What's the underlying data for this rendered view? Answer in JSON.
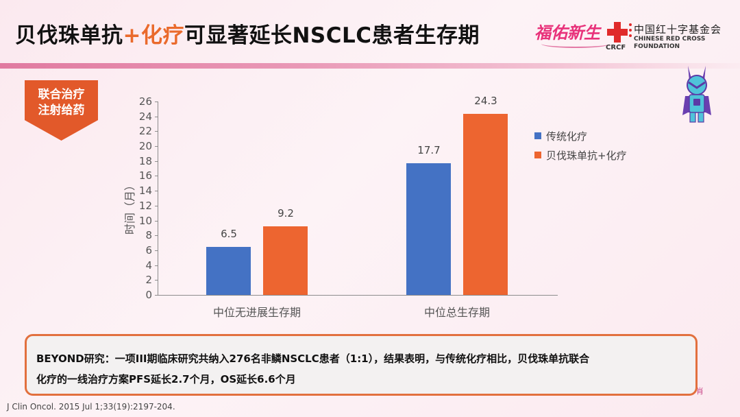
{
  "header": {
    "title_part1": "贝伐珠单抗",
    "title_accent": "+化疗",
    "title_part2": "可显著延长NSCLC患者生存期",
    "accent_color": "#ea6a2c",
    "slogan": "福佑新生",
    "org_abbr": "CRCF",
    "org_name_cn": "中国红十字基金会",
    "org_name_en_line1": "CHINESE RED CROSS",
    "org_name_en_line2": "FOUNDATION"
  },
  "badge": {
    "line1": "联合治疗",
    "line2": "注射给药",
    "color": "#e2592a"
  },
  "chart_data": {
    "type": "bar",
    "title": "",
    "xlabel": "",
    "ylabel": "时间（月）",
    "ylim": [
      0,
      26
    ],
    "yticks": [
      0,
      2,
      4,
      6,
      8,
      10,
      12,
      14,
      16,
      18,
      20,
      22,
      24,
      26
    ],
    "categories": [
      "中位无进展生存期",
      "中位总生存期"
    ],
    "series": [
      {
        "name": "传统化疗",
        "color": "#4472c4",
        "values": [
          6.5,
          17.7
        ]
      },
      {
        "name": "贝伐珠单抗+化疗",
        "color": "#ed6530",
        "values": [
          9.2,
          24.3
        ]
      }
    ],
    "data_labels": [
      "6.5",
      "9.2",
      "17.7",
      "24.3"
    ],
    "grid": false,
    "legend_position": "right"
  },
  "summary": {
    "line1": "BEYOND研究：一项III期临床研究共纳入276名非鳞NSCLC患者（1:1），结果表明，与传统化疗相比，贝伐珠单抗联合",
    "line2": "化疗的一线治疗方案PFS延长2.7个月，OS延长6.6个月"
  },
  "reference": "J Clin Oncol. 2015 Jul 1;33(19):2197-204."
}
